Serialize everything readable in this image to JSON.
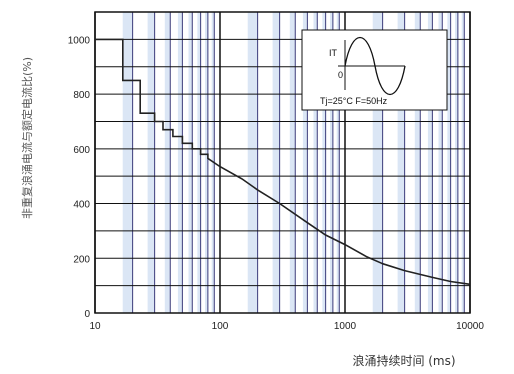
{
  "chart_data": {
    "type": "line",
    "title": "",
    "xlabel": "浪涌持续时间 (ms)",
    "ylabel": "非重复浪涌电流与额定电流比(%)",
    "x_scale": "log",
    "xlim": [
      10,
      10000
    ],
    "ylim": [
      0,
      1100
    ],
    "x_ticks": [
      {
        "value": 10,
        "label": "10"
      },
      {
        "value": 100,
        "label": "100"
      },
      {
        "value": 1000,
        "label": "1000"
      },
      {
        "value": 10000,
        "label": "10000"
      }
    ],
    "y_ticks": [
      {
        "value": 0,
        "label": "0"
      },
      {
        "value": 200,
        "label": "200"
      },
      {
        "value": 400,
        "label": "400"
      },
      {
        "value": 600,
        "label": "600"
      },
      {
        "value": 800,
        "label": "800"
      },
      {
        "value": 1000,
        "label": "1000"
      }
    ],
    "grid": true,
    "series": [
      {
        "name": "",
        "color": "#222222",
        "points": [
          [
            10,
            1000
          ],
          [
            16.7,
            1000
          ],
          [
            16.7,
            850
          ],
          [
            23,
            850
          ],
          [
            23,
            730
          ],
          [
            30,
            730
          ],
          [
            30,
            700
          ],
          [
            35,
            700
          ],
          [
            35,
            670
          ],
          [
            42,
            670
          ],
          [
            42,
            645
          ],
          [
            50,
            645
          ],
          [
            50,
            620
          ],
          [
            60,
            620
          ],
          [
            60,
            600
          ],
          [
            70,
            600
          ],
          [
            70,
            580
          ],
          [
            80,
            580
          ],
          [
            80,
            565
          ],
          [
            100,
            535
          ],
          [
            150,
            490
          ],
          [
            200,
            450
          ],
          [
            300,
            400
          ],
          [
            500,
            330
          ],
          [
            700,
            285
          ],
          [
            1000,
            250
          ],
          [
            1500,
            205
          ],
          [
            2000,
            180
          ],
          [
            3000,
            155
          ],
          [
            5000,
            130
          ],
          [
            7000,
            115
          ],
          [
            10000,
            105
          ]
        ]
      }
    ],
    "inset": {
      "waveform_label": "IT",
      "origin_label": "0",
      "conditions": "Tj=25°C   F=50Hz"
    }
  }
}
